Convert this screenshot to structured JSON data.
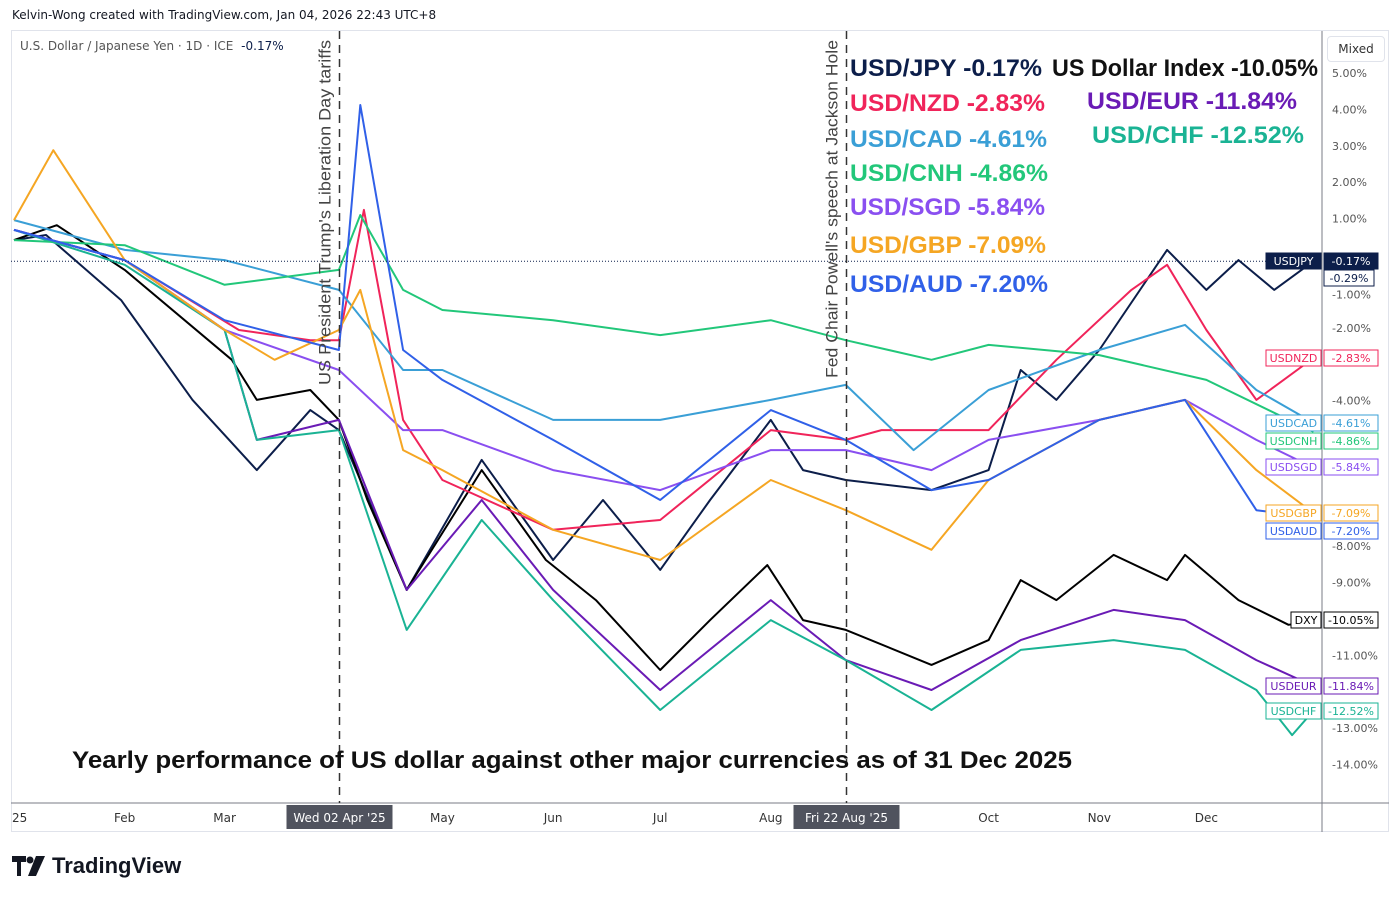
{
  "credit": "Kelvin-Wong created with TradingView.com, Jan 04, 2026 22:43 UTC+8",
  "symbol_info": {
    "title": "U.S. Dollar / Japanese Yen · 1D · ICE",
    "change": "-0.17%"
  },
  "scale_button": "Mixed",
  "logo": "TradingView",
  "chart_data": {
    "type": "line",
    "title": "Yearly performance of US dollar against other major currencies as of 31 Dec 2025",
    "ylim": [
      -15,
      5.5
    ],
    "y_ticks": [
      "5.00%",
      "4.00%",
      "3.00%",
      "2.00%",
      "1.00%",
      "-1.00%",
      "-2.00%",
      "-4.00%",
      "-8.00%",
      "-9.00%",
      "-11.00%",
      "-13.00%",
      "-14.00%"
    ],
    "y_tick_values": [
      5,
      4,
      3,
      2,
      1,
      -1,
      -2,
      -4,
      -8,
      -9,
      -11,
      -13,
      -14
    ],
    "x_ticks": [
      {
        "label": "25",
        "date": "2025-01-01"
      },
      {
        "label": "Feb",
        "date": "2025-02-01"
      },
      {
        "label": "Mar",
        "date": "2025-03-01"
      },
      {
        "label": "May",
        "date": "2025-05-01"
      },
      {
        "label": "Jun",
        "date": "2025-06-01"
      },
      {
        "label": "Jul",
        "date": "2025-07-01"
      },
      {
        "label": "Aug",
        "date": "2025-08-01"
      },
      {
        "label": "Oct",
        "date": "2025-10-01"
      },
      {
        "label": "Nov",
        "date": "2025-11-01"
      },
      {
        "label": "Dec",
        "date": "2025-12-01"
      }
    ],
    "events": [
      {
        "date": "2025-04-02",
        "axis_label": "Wed 02 Apr '25",
        "text": "US President Trump's Liberation Day tariffs"
      },
      {
        "date": "2025-08-22",
        "axis_label": "Fri 22 Aug '25",
        "text": "Fed Chair Powell's speech at Jackson Hole"
      }
    ],
    "extra_price_label": "-0.29%",
    "series": [
      {
        "name": "USDJPY",
        "legend": "USD/JPY -0.17%",
        "last": "-0.17%",
        "color": "#0c1e4a",
        "points": [
          [
            "2025-01-01",
            0.41
          ],
          [
            "2025-01-10",
            0.55
          ],
          [
            "2025-01-31",
            -1.24
          ],
          [
            "2025-02-20",
            -3.98
          ],
          [
            "2025-03-10",
            -5.91
          ],
          [
            "2025-03-25",
            -4.26
          ],
          [
            "2025-04-02",
            -4.81
          ],
          [
            "2025-04-08",
            -6.18
          ],
          [
            "2025-04-21",
            -9.2
          ],
          [
            "2025-05-12",
            -5.63
          ],
          [
            "2025-06-01",
            -8.38
          ],
          [
            "2025-06-15",
            -6.73
          ],
          [
            "2025-07-01",
            -8.65
          ],
          [
            "2025-07-15",
            -6.73
          ],
          [
            "2025-08-01",
            -4.53
          ],
          [
            "2025-08-10",
            -5.91
          ],
          [
            "2025-08-22",
            -6.18
          ],
          [
            "2025-09-15",
            -6.46
          ],
          [
            "2025-10-01",
            -5.91
          ],
          [
            "2025-10-10",
            -3.16
          ],
          [
            "2025-10-20",
            -3.98
          ],
          [
            "2025-11-01",
            -2.61
          ],
          [
            "2025-11-20",
            0.14
          ],
          [
            "2025-12-01",
            -0.96
          ],
          [
            "2025-12-10",
            -0.14
          ],
          [
            "2025-12-20",
            -0.96
          ],
          [
            "2025-12-31",
            -0.17
          ]
        ]
      },
      {
        "name": "DXY",
        "legend": "US Dollar Index -10.05%",
        "last": "-10.05%",
        "color": "#000000",
        "points": [
          [
            "2025-01-01",
            0.41
          ],
          [
            "2025-01-13",
            0.82
          ],
          [
            "2025-02-01",
            -0.41
          ],
          [
            "2025-03-03",
            -2.88
          ],
          [
            "2025-03-10",
            -3.98
          ],
          [
            "2025-03-25",
            -3.71
          ],
          [
            "2025-04-02",
            -4.53
          ],
          [
            "2025-04-10",
            -6.73
          ],
          [
            "2025-04-21",
            -9.2
          ],
          [
            "2025-05-12",
            -5.91
          ],
          [
            "2025-05-30",
            -8.38
          ],
          [
            "2025-06-13",
            -9.48
          ],
          [
            "2025-07-01",
            -11.4
          ],
          [
            "2025-07-15",
            -10.03
          ],
          [
            "2025-07-31",
            -8.52
          ],
          [
            "2025-08-10",
            -10.03
          ],
          [
            "2025-08-22",
            -10.3
          ],
          [
            "2025-09-15",
            -11.26
          ],
          [
            "2025-10-01",
            -10.58
          ],
          [
            "2025-10-10",
            -8.93
          ],
          [
            "2025-10-20",
            -9.48
          ],
          [
            "2025-11-05",
            -8.24
          ],
          [
            "2025-11-20",
            -8.93
          ],
          [
            "2025-11-25",
            -8.24
          ],
          [
            "2025-12-10",
            -9.48
          ],
          [
            "2025-12-24",
            -10.16
          ],
          [
            "2025-12-31",
            -10.05
          ]
        ]
      },
      {
        "name": "USDNZD",
        "legend": "USD/NZD -2.83%",
        "last": "-2.83%",
        "color": "#f0245a",
        "points": [
          [
            "2025-01-01",
            0.69
          ],
          [
            "2025-02-01",
            -0.14
          ],
          [
            "2025-03-05",
            -2.06
          ],
          [
            "2025-03-25",
            -2.34
          ],
          [
            "2025-04-02",
            -2.34
          ],
          [
            "2025-04-09",
            1.24
          ],
          [
            "2025-04-20",
            -4.53
          ],
          [
            "2025-05-01",
            -6.18
          ],
          [
            "2025-06-01",
            -7.55
          ],
          [
            "2025-07-01",
            -7.28
          ],
          [
            "2025-08-01",
            -4.81
          ],
          [
            "2025-08-22",
            -5.08
          ],
          [
            "2025-09-01",
            -4.81
          ],
          [
            "2025-10-01",
            -4.81
          ],
          [
            "2025-10-20",
            -2.88
          ],
          [
            "2025-11-10",
            -0.96
          ],
          [
            "2025-11-20",
            -0.27
          ],
          [
            "2025-12-01",
            -2.06
          ],
          [
            "2025-12-15",
            -3.98
          ],
          [
            "2025-12-31",
            -2.83
          ]
        ]
      },
      {
        "name": "USDEUR",
        "legend": "USD/EUR -11.84%",
        "last": "-11.84%",
        "color": "#6a1bb5",
        "points": [
          [
            "2025-01-01",
            0.69
          ],
          [
            "2025-02-01",
            -0.14
          ],
          [
            "2025-03-01",
            -2.06
          ],
          [
            "2025-03-10",
            -5.08
          ],
          [
            "2025-04-02",
            -4.53
          ],
          [
            "2025-04-21",
            -9.2
          ],
          [
            "2025-05-12",
            -6.73
          ],
          [
            "2025-06-01",
            -9.2
          ],
          [
            "2025-07-01",
            -11.95
          ],
          [
            "2025-08-01",
            -9.48
          ],
          [
            "2025-08-22",
            -11.13
          ],
          [
            "2025-09-15",
            -11.95
          ],
          [
            "2025-10-10",
            -10.58
          ],
          [
            "2025-11-05",
            -9.75
          ],
          [
            "2025-11-25",
            -10.03
          ],
          [
            "2025-12-15",
            -11.13
          ],
          [
            "2025-12-31",
            -11.84
          ]
        ]
      },
      {
        "name": "USDCAD",
        "legend": "USD/CAD -4.61%",
        "last": "-4.61%",
        "color": "#3a9fd6",
        "points": [
          [
            "2025-01-01",
            0.96
          ],
          [
            "2025-02-01",
            0.14
          ],
          [
            "2025-03-01",
            -0.14
          ],
          [
            "2025-04-02",
            -0.96
          ],
          [
            "2025-04-20",
            -3.16
          ],
          [
            "2025-05-01",
            -3.16
          ],
          [
            "2025-06-01",
            -4.53
          ],
          [
            "2025-07-01",
            -4.53
          ],
          [
            "2025-08-01",
            -3.98
          ],
          [
            "2025-08-22",
            -3.57
          ],
          [
            "2025-09-10",
            -5.36
          ],
          [
            "2025-10-01",
            -3.71
          ],
          [
            "2025-11-01",
            -2.61
          ],
          [
            "2025-11-25",
            -1.92
          ],
          [
            "2025-12-15",
            -3.71
          ],
          [
            "2025-12-31",
            -4.61
          ]
        ]
      },
      {
        "name": "USDCHF",
        "legend": "USD/CHF -12.52%",
        "last": "-12.52%",
        "color": "#1ab394",
        "points": [
          [
            "2025-01-01",
            0.69
          ],
          [
            "2025-02-01",
            -0.27
          ],
          [
            "2025-03-01",
            -2.06
          ],
          [
            "2025-03-10",
            -5.08
          ],
          [
            "2025-04-02",
            -4.81
          ],
          [
            "2025-04-21",
            -10.3
          ],
          [
            "2025-05-12",
            -7.28
          ],
          [
            "2025-06-01",
            -9.48
          ],
          [
            "2025-07-01",
            -12.5
          ],
          [
            "2025-08-01",
            -10.03
          ],
          [
            "2025-08-22",
            -11.13
          ],
          [
            "2025-09-15",
            -12.5
          ],
          [
            "2025-10-10",
            -10.85
          ],
          [
            "2025-11-05",
            -10.58
          ],
          [
            "2025-11-25",
            -10.85
          ],
          [
            "2025-12-15",
            -11.95
          ],
          [
            "2025-12-25",
            -13.19
          ],
          [
            "2025-12-31",
            -12.52
          ]
        ]
      },
      {
        "name": "USDCNH",
        "legend": "USD/CNH -4.86%",
        "last": "-4.86%",
        "color": "#22c77a",
        "points": [
          [
            "2025-01-01",
            0.41
          ],
          [
            "2025-02-01",
            0.27
          ],
          [
            "2025-03-01",
            -0.82
          ],
          [
            "2025-04-02",
            -0.41
          ],
          [
            "2025-04-08",
            1.1
          ],
          [
            "2025-04-20",
            -0.96
          ],
          [
            "2025-05-01",
            -1.51
          ],
          [
            "2025-06-01",
            -1.79
          ],
          [
            "2025-07-01",
            -2.2
          ],
          [
            "2025-08-01",
            -1.79
          ],
          [
            "2025-08-22",
            -2.34
          ],
          [
            "2025-09-15",
            -2.88
          ],
          [
            "2025-10-01",
            -2.47
          ],
          [
            "2025-11-01",
            -2.75
          ],
          [
            "2025-12-01",
            -3.43
          ],
          [
            "2025-12-31",
            -4.86
          ]
        ]
      },
      {
        "name": "USDSGD",
        "legend": "USD/SGD -5.84%",
        "last": "-5.84%",
        "color": "#8a4ff0",
        "points": [
          [
            "2025-01-01",
            0.69
          ],
          [
            "2025-02-01",
            -0.14
          ],
          [
            "2025-03-01",
            -2.06
          ],
          [
            "2025-04-02",
            -3.16
          ],
          [
            "2025-04-20",
            -4.81
          ],
          [
            "2025-05-01",
            -4.81
          ],
          [
            "2025-06-01",
            -5.91
          ],
          [
            "2025-07-01",
            -6.46
          ],
          [
            "2025-08-01",
            -5.36
          ],
          [
            "2025-08-22",
            -5.36
          ],
          [
            "2025-09-15",
            -5.91
          ],
          [
            "2025-10-01",
            -5.08
          ],
          [
            "2025-11-01",
            -4.53
          ],
          [
            "2025-11-25",
            -3.98
          ],
          [
            "2025-12-15",
            -5.08
          ],
          [
            "2025-12-31",
            -5.84
          ]
        ]
      },
      {
        "name": "USDGBP",
        "legend": "USD/GBP -7.09%",
        "last": "-7.09%",
        "color": "#f5a623",
        "points": [
          [
            "2025-01-01",
            0.96
          ],
          [
            "2025-01-12",
            2.88
          ],
          [
            "2025-02-01",
            -0.14
          ],
          [
            "2025-03-01",
            -2.06
          ],
          [
            "2025-03-15",
            -2.88
          ],
          [
            "2025-04-02",
            -2.06
          ],
          [
            "2025-04-08",
            -0.96
          ],
          [
            "2025-04-20",
            -5.36
          ],
          [
            "2025-05-01",
            -5.91
          ],
          [
            "2025-06-01",
            -7.55
          ],
          [
            "2025-07-01",
            -8.38
          ],
          [
            "2025-08-01",
            -6.18
          ],
          [
            "2025-08-22",
            -7.01
          ],
          [
            "2025-09-15",
            -8.1
          ],
          [
            "2025-10-01",
            -6.18
          ],
          [
            "2025-11-01",
            -4.53
          ],
          [
            "2025-11-25",
            -3.98
          ],
          [
            "2025-12-15",
            -5.91
          ],
          [
            "2025-12-31",
            -7.09
          ]
        ]
      },
      {
        "name": "USDAUD",
        "legend": "USD/AUD -7.20%",
        "last": "-7.20%",
        "color": "#3060e8",
        "points": [
          [
            "2025-01-01",
            0.69
          ],
          [
            "2025-02-01",
            -0.14
          ],
          [
            "2025-03-01",
            -1.79
          ],
          [
            "2025-04-02",
            -2.61
          ],
          [
            "2025-04-08",
            4.12
          ],
          [
            "2025-04-20",
            -2.61
          ],
          [
            "2025-05-01",
            -3.43
          ],
          [
            "2025-06-01",
            -5.08
          ],
          [
            "2025-07-01",
            -6.73
          ],
          [
            "2025-08-01",
            -4.26
          ],
          [
            "2025-08-22",
            -5.08
          ],
          [
            "2025-09-15",
            -6.46
          ],
          [
            "2025-10-01",
            -6.18
          ],
          [
            "2025-11-01",
            -4.53
          ],
          [
            "2025-11-25",
            -3.98
          ],
          [
            "2025-12-15",
            -7.01
          ],
          [
            "2025-12-31",
            -7.2
          ]
        ]
      }
    ]
  }
}
